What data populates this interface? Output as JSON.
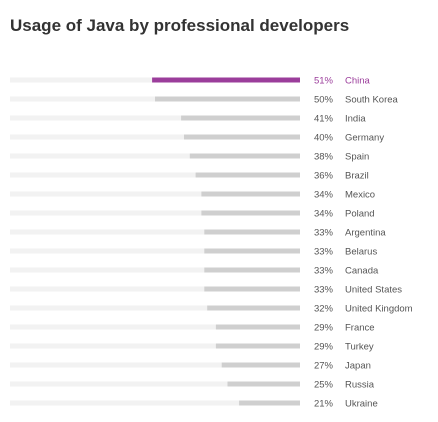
{
  "title": "Usage of Java by professional developers",
  "colors": {
    "highlight": "#9b3d9b",
    "bar": "#cfcfcf",
    "track": "#f2f2f2",
    "label": "#555555"
  },
  "chart_data": {
    "type": "bar",
    "orientation": "horizontal",
    "title": "Usage of Java by professional developers",
    "categories": [
      "China",
      "South Korea",
      "India",
      "Germany",
      "Spain",
      "Brazil",
      "Mexico",
      "Poland",
      "Argentina",
      "Belarus",
      "Canada",
      "United States",
      "United Kingdom",
      "France",
      "Turkey",
      "Japan",
      "Russia",
      "Ukraine"
    ],
    "values": [
      51,
      50,
      41,
      40,
      38,
      36,
      34,
      34,
      33,
      33,
      33,
      33,
      32,
      29,
      29,
      27,
      25,
      21
    ],
    "value_labels": [
      "51%",
      "50%",
      "41%",
      "40%",
      "38%",
      "36%",
      "34%",
      "34%",
      "33%",
      "33%",
      "33%",
      "33%",
      "32%",
      "29%",
      "29%",
      "27%",
      "25%",
      "21%"
    ],
    "unit": "%",
    "highlight_index": 0,
    "xlim": [
      0,
      100
    ],
    "grid": false,
    "legend": "none"
  }
}
